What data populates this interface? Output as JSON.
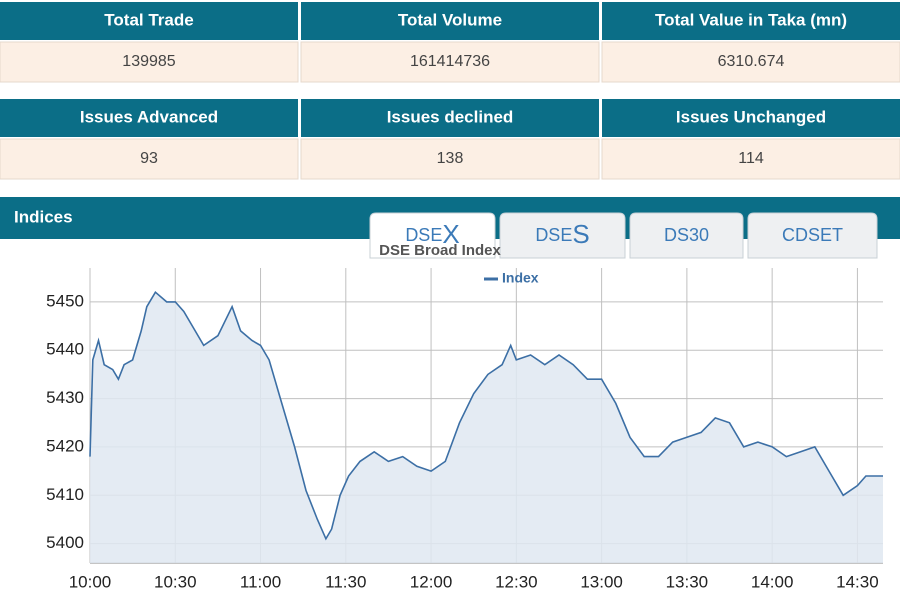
{
  "stats": {
    "headers": [
      "Total Trade",
      "Total Volume",
      "Total Value in Taka (mn)"
    ],
    "values": [
      "139985",
      "161414736",
      "6310.674"
    ]
  },
  "issues": {
    "headers": [
      "Issues Advanced",
      "Issues declined",
      "Issues Unchanged"
    ],
    "values": [
      "93",
      "138",
      "114"
    ]
  },
  "indices": {
    "title": "Indices",
    "tabs": [
      {
        "label": "DSE",
        "accent": "X"
      },
      {
        "label": "DSE",
        "accent": "S"
      },
      {
        "label": "DS30"
      },
      {
        "label": "CDSET"
      }
    ]
  },
  "chart_data": {
    "type": "line",
    "title": "DSE Broad Index",
    "x": [
      "10:00",
      "10:01",
      "10:03",
      "10:05",
      "10:08",
      "10:10",
      "10:12",
      "10:15",
      "10:18",
      "10:20",
      "10:23",
      "10:27",
      "10:30",
      "10:33",
      "10:37",
      "10:40",
      "10:45",
      "10:50",
      "10:53",
      "10:57",
      "11:00",
      "11:03",
      "11:07",
      "11:12",
      "11:16",
      "11:20",
      "11:23",
      "11:25",
      "11:28",
      "11:31",
      "11:35",
      "11:40",
      "11:45",
      "11:50",
      "11:55",
      "12:00",
      "12:05",
      "12:10",
      "12:15",
      "12:20",
      "12:25",
      "12:28",
      "12:30",
      "12:35",
      "12:40",
      "12:45",
      "12:50",
      "12:55",
      "13:00",
      "13:05",
      "13:10",
      "13:15",
      "13:20",
      "13:25",
      "13:30",
      "13:35",
      "13:40",
      "13:45",
      "13:50",
      "13:55",
      "14:00",
      "14:05",
      "14:10",
      "14:15",
      "14:20",
      "14:25",
      "14:30",
      "14:33",
      "14:39"
    ],
    "series": [
      {
        "name": "Index",
        "color": "#3c6fa5",
        "values": [
          5418,
          5438,
          5442,
          5437,
          5436,
          5434,
          5437,
          5438,
          5444,
          5449,
          5452,
          5450,
          5450,
          5448,
          5444,
          5441,
          5443,
          5449,
          5444,
          5442,
          5441,
          5438,
          5430,
          5420,
          5411,
          5405,
          5401,
          5403,
          5410,
          5414,
          5417,
          5419,
          5417,
          5418,
          5416,
          5415,
          5417,
          5425,
          5431,
          5435,
          5437,
          5441,
          5438,
          5439,
          5437,
          5439,
          5437,
          5434,
          5434,
          5429,
          5422,
          5418,
          5418,
          5421,
          5422,
          5423,
          5426,
          5425,
          5420,
          5421,
          5420,
          5418,
          5419,
          5420,
          5415,
          5410,
          5412,
          5414,
          5414
        ]
      }
    ],
    "xlim": [
      "10:00",
      "14:39"
    ],
    "xticks": [
      "10:00",
      "10:30",
      "11:00",
      "11:30",
      "12:00",
      "12:30",
      "13:00",
      "13:30",
      "14:00",
      "14:30"
    ],
    "ylim": [
      5396,
      5457
    ],
    "yticks": [
      5400,
      5410,
      5420,
      5430,
      5440,
      5450
    ],
    "grid": true,
    "legend": "top"
  }
}
